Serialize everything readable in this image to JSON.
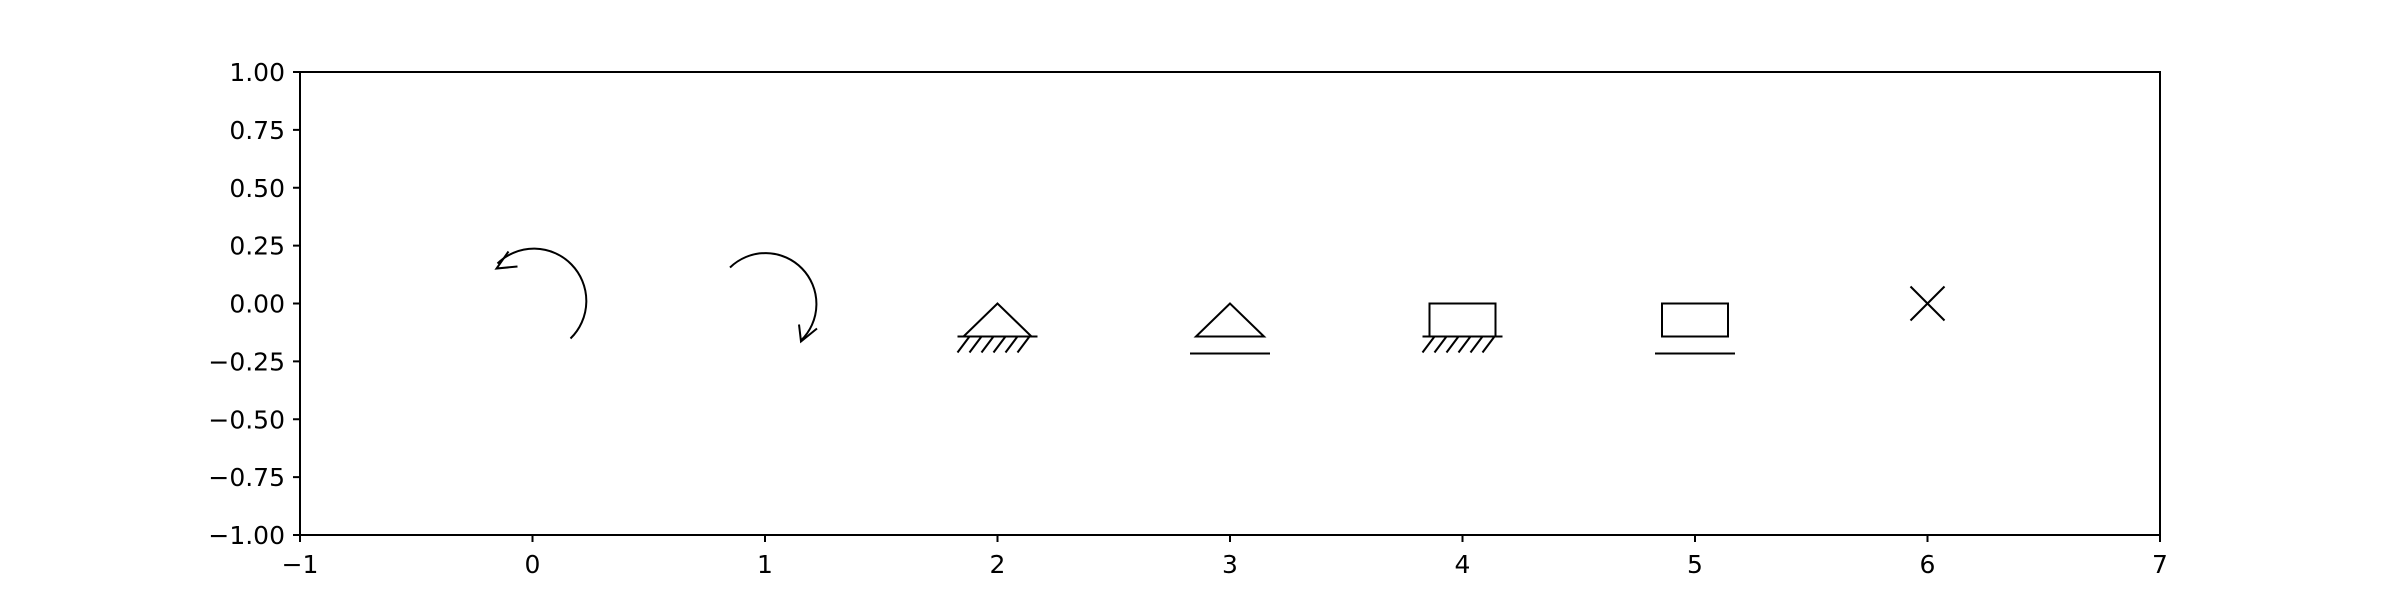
{
  "chart_data": {
    "type": "scatter",
    "title": "",
    "xlabel": "",
    "ylabel": "",
    "xlim": [
      -1,
      7
    ],
    "ylim": [
      -1,
      1
    ],
    "grid": false,
    "legend": "none",
    "x_ticks": [
      {
        "value": -1,
        "label": "−1"
      },
      {
        "value": 0,
        "label": "0"
      },
      {
        "value": 1,
        "label": "1"
      },
      {
        "value": 2,
        "label": "2"
      },
      {
        "value": 3,
        "label": "3"
      },
      {
        "value": 4,
        "label": "4"
      },
      {
        "value": 5,
        "label": "5"
      },
      {
        "value": 6,
        "label": "6"
      },
      {
        "value": 7,
        "label": "7"
      }
    ],
    "y_ticks": [
      {
        "value": 1,
        "label": "1.00"
      },
      {
        "value": 0.75,
        "label": "0.75"
      },
      {
        "value": 0.5,
        "label": "0.50"
      },
      {
        "value": 0.25,
        "label": "0.25"
      },
      {
        "value": 0,
        "label": "0.00"
      },
      {
        "value": -0.25,
        "label": "−0.25"
      },
      {
        "value": -0.5,
        "label": "−0.50"
      },
      {
        "value": -0.75,
        "label": "−0.75"
      },
      {
        "value": -1,
        "label": "−1.00"
      }
    ],
    "points": [
      {
        "x": 0,
        "y": 0,
        "marker": "counterclockwise-arrow"
      },
      {
        "x": 1,
        "y": 0,
        "marker": "clockwise-arrow"
      },
      {
        "x": 2,
        "y": 0,
        "marker": "triangle-hatched"
      },
      {
        "x": 3,
        "y": 0,
        "marker": "triangle-line"
      },
      {
        "x": 4,
        "y": 0,
        "marker": "rectangle-hatched"
      },
      {
        "x": 5,
        "y": 0,
        "marker": "rectangle-line"
      },
      {
        "x": 6,
        "y": 0,
        "marker": "x-cross"
      }
    ],
    "colors": {
      "marker": "#000000",
      "axes": "#000000",
      "background": "#ffffff"
    }
  }
}
